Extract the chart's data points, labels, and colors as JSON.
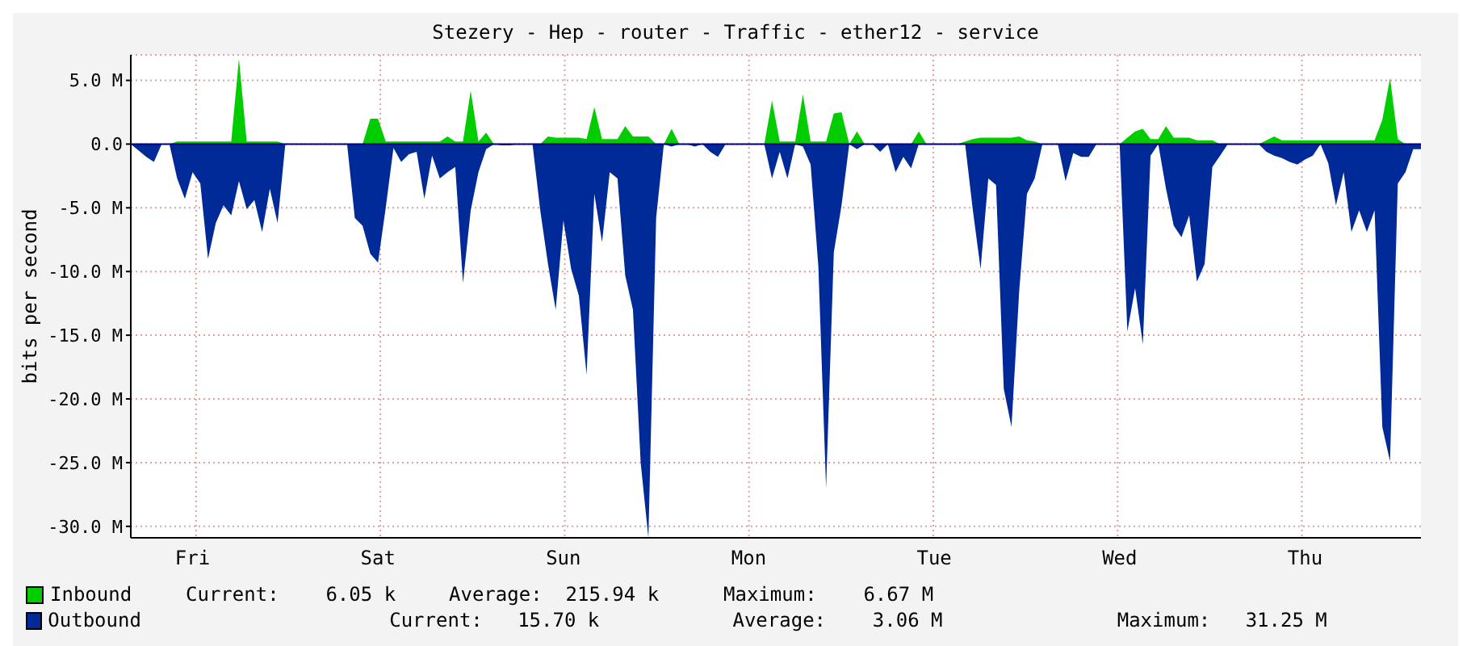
{
  "chart_data": {
    "type": "area",
    "title": "Stezery - Hep - router - Traffic - ether12 - service",
    "ylabel": "bits per second",
    "categories": [
      null,
      null,
      null,
      null,
      null,
      null,
      null,
      null,
      "Fri",
      null,
      null,
      null,
      null,
      null,
      null,
      null,
      null,
      null,
      null,
      null,
      null,
      null,
      null,
      null,
      null,
      null,
      null,
      null,
      null,
      null,
      null,
      null,
      "Sat",
      null,
      null,
      null,
      null,
      null,
      null,
      null,
      null,
      null,
      null,
      null,
      null,
      null,
      null,
      null,
      null,
      null,
      null,
      null,
      null,
      null,
      null,
      null,
      "Sun",
      null,
      null,
      null,
      null,
      null,
      null,
      null,
      null,
      null,
      null,
      null,
      null,
      null,
      null,
      null,
      null,
      null,
      null,
      null,
      null,
      null,
      null,
      null,
      "Mon",
      null,
      null,
      null,
      null,
      null,
      null,
      null,
      null,
      null,
      null,
      null,
      null,
      null,
      null,
      null,
      null,
      null,
      null,
      null,
      null,
      null,
      null,
      null,
      "Tue",
      null,
      null,
      null,
      null,
      null,
      null,
      null,
      null,
      null,
      null,
      null,
      null,
      null,
      null,
      null,
      null,
      null,
      null,
      null,
      null,
      null,
      null,
      null,
      "Wed",
      null,
      null,
      null,
      null,
      null,
      null,
      null,
      null,
      null,
      null,
      null,
      null,
      null,
      null,
      null,
      null,
      null,
      null,
      null,
      null,
      null,
      null,
      null,
      "Thu",
      null,
      null,
      null,
      null,
      null,
      null,
      null,
      null,
      null,
      null,
      null,
      null,
      null,
      null,
      null
    ],
    "ylim": [
      -30.9,
      7
    ],
    "yticks": [
      {
        "value": 5,
        "label": "5.0 M"
      },
      {
        "value": 0,
        "label": "0.0"
      },
      {
        "value": -5,
        "label": "-5.0 M"
      },
      {
        "value": -10,
        "label": "-10.0 M"
      },
      {
        "value": -15,
        "label": "-15.0 M"
      },
      {
        "value": -20,
        "label": "-20.0 M"
      },
      {
        "value": -25,
        "label": "-25.0 M"
      },
      {
        "value": -30,
        "label": "-30.0 M"
      }
    ],
    "grid": true,
    "legend": "bottom",
    "annotations": [
      "Current:    6.05 k",
      "Average:  215.94 k",
      "Maximum:    6.67 M",
      "Current:   15.70 k",
      "Average:    3.06 M",
      "Maximum:   31.25 M"
    ],
    "series": [
      {
        "name": "Inbound",
        "color": "#00cc00",
        "values": [
          0,
          0,
          0,
          0,
          0,
          0,
          0.2,
          0.2,
          0.2,
          0.2,
          0.2,
          0.2,
          0.2,
          0.2,
          6.7,
          0.2,
          0.2,
          0.2,
          0.2,
          0.2,
          0,
          0,
          0,
          0,
          0,
          0,
          0,
          0,
          0,
          0,
          0,
          2.0,
          2.0,
          0.2,
          0.2,
          0.2,
          0.2,
          0.2,
          0.2,
          0.2,
          0.2,
          0.6,
          0.2,
          0.2,
          4.2,
          0.2,
          0.9,
          0,
          0,
          0,
          0,
          0,
          0,
          0,
          0.6,
          0.5,
          0.5,
          0.5,
          0.5,
          0.4,
          2.9,
          0.4,
          0.4,
          0.4,
          1.4,
          0.6,
          0.6,
          0.6,
          0,
          0,
          1.2,
          0,
          0,
          0,
          0,
          0,
          0,
          0,
          0,
          0,
          0,
          0,
          0,
          3.4,
          0.2,
          0.2,
          0.2,
          3.9,
          0.2,
          0.2,
          0.2,
          2.4,
          2.5,
          0,
          1.0,
          0,
          0,
          0,
          0,
          0,
          0,
          0,
          1.0,
          0,
          0,
          0,
          0,
          0,
          0.2,
          0.4,
          0.5,
          0.5,
          0.5,
          0.5,
          0.5,
          0.6,
          0.3,
          0.2,
          0,
          0,
          0,
          0,
          0,
          0,
          0,
          0,
          0,
          0,
          0,
          0.5,
          1.0,
          1.2,
          0.4,
          0.4,
          1.4,
          0.5,
          0.5,
          0.5,
          0.3,
          0.3,
          0.3,
          0,
          0,
          0,
          0,
          0,
          0,
          0.3,
          0.6,
          0.3,
          0.3,
          0.3,
          0.3,
          0.3,
          0.3,
          0.3,
          0.3,
          0.3,
          0.3,
          0.3,
          0.3,
          0.3,
          1.9,
          5.2,
          0.4,
          0,
          0,
          0
        ]
      },
      {
        "name": "Outbound",
        "color": "#002a97",
        "values": [
          0,
          -0.5,
          -1.0,
          -1.4,
          0,
          0,
          -2.7,
          -4.3,
          -2.2,
          -3.1,
          -9.0,
          -6.2,
          -4.8,
          -5.6,
          -2.9,
          -5.1,
          -4.4,
          -6.9,
          -3.5,
          -6.2,
          0,
          0,
          0,
          0,
          0,
          0,
          0,
          0,
          0,
          -5.8,
          -6.4,
          -8.6,
          -9.3,
          -5.0,
          -0.3,
          -1.4,
          -0.8,
          -0.6,
          -4.3,
          -0.9,
          -2.7,
          -2.2,
          -1.8,
          -10.9,
          -5.2,
          -2.2,
          -0.4,
          0,
          -0.1,
          -0.1,
          0,
          0,
          0,
          -5.2,
          -9.4,
          -13.0,
          -6.0,
          -9.8,
          -11.9,
          -18.1,
          -3.9,
          -7.7,
          -2.2,
          -2.7,
          -10.3,
          -13.0,
          -25.0,
          -30.9,
          -5.8,
          0,
          -0.2,
          0,
          0,
          -0.2,
          0,
          -0.6,
          -1.0,
          0,
          0,
          0,
          0,
          0,
          0,
          -2.7,
          -0.6,
          -2.7,
          0,
          -0.2,
          -1.6,
          -9.6,
          -27.0,
          -8.5,
          -4.8,
          0,
          -0.4,
          0,
          0,
          -0.6,
          0,
          -2.2,
          -1.0,
          -1.9,
          0,
          0,
          0,
          0,
          0,
          0,
          0,
          -5.2,
          -9.8,
          -2.7,
          -3.2,
          -19.2,
          -22.2,
          -11.5,
          -3.9,
          -2.7,
          0,
          0,
          0,
          -2.9,
          -0.7,
          -1.0,
          -1.0,
          0,
          0,
          0,
          0,
          -14.7,
          -11.3,
          -15.7,
          -0.9,
          0,
          -3.5,
          -6.4,
          -7.3,
          -5.6,
          -10.8,
          -9.4,
          -1.8,
          -0.9,
          0,
          0,
          0,
          0,
          0,
          -0.6,
          -0.9,
          -1.1,
          -1.4,
          -1.6,
          -1.2,
          -0.9,
          0,
          -1.5,
          -4.8,
          -2.2,
          -6.9,
          -5.2,
          -6.9,
          -5.2,
          -22.2,
          -24.9,
          -3.1,
          -2.2,
          -0.4,
          -0.4
        ]
      }
    ]
  }
}
